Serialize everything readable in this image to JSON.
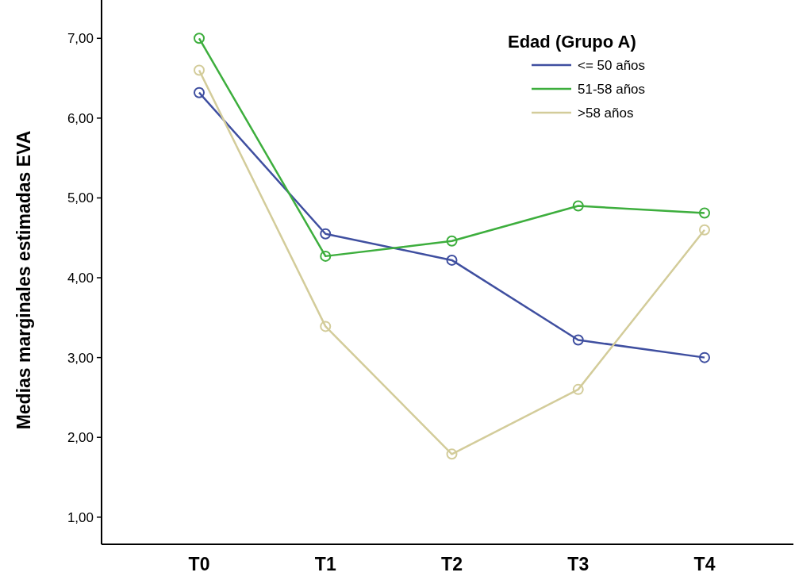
{
  "chart_data": {
    "type": "line",
    "ylabel": "Medias marginales estimadas EVA",
    "legend_title": "Edad (Grupo A)",
    "legend": "top right",
    "marker": "circle",
    "grid": false,
    "categories": [
      "T0",
      "T1",
      "T2",
      "T3",
      "T4"
    ],
    "ylim": [
      0.66,
      7.48
    ],
    "yticks": [
      {
        "value": 1,
        "label": "1,00"
      },
      {
        "value": 2,
        "label": "2,00"
      },
      {
        "value": 3,
        "label": "3,00"
      },
      {
        "value": 4,
        "label": "4,00"
      },
      {
        "value": 5,
        "label": "5,00"
      },
      {
        "value": 6,
        "label": "6,00"
      },
      {
        "value": 7,
        "label": "7,00"
      }
    ],
    "series": [
      {
        "name": "<= 50 años",
        "color": "#3f4fa0",
        "values": [
          6.32,
          4.55,
          4.22,
          3.22,
          3.0
        ]
      },
      {
        "name": "51-58 años",
        "color": "#3dae3d",
        "values": [
          7.0,
          4.27,
          4.46,
          4.9,
          4.81
        ]
      },
      {
        "name": ">58 años",
        "color": "#d3cc9a",
        "values": [
          6.6,
          3.39,
          1.79,
          2.6,
          4.6
        ]
      }
    ]
  }
}
